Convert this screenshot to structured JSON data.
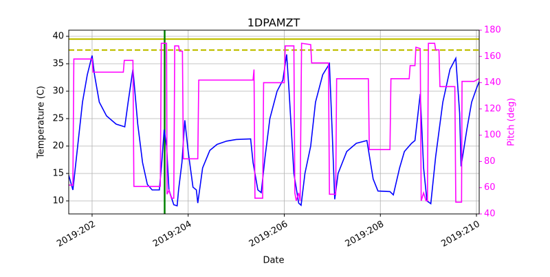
{
  "chart_data": {
    "type": "line",
    "title": "1DPAMZT",
    "xlabel": "Date",
    "ylabel": "Temperature (C)",
    "y2label": "Pitch (deg)",
    "y2color": "#ff00ff",
    "xlim": [
      201.514,
      210.057
    ],
    "xticks": [
      {
        "value": 202,
        "label": "2019:202"
      },
      {
        "value": 204,
        "label": "2019:204"
      },
      {
        "value": 206,
        "label": "2019:206"
      },
      {
        "value": 208,
        "label": "2019:208"
      },
      {
        "value": 210,
        "label": "2019:210"
      }
    ],
    "ylim": [
      7.625,
      41.125
    ],
    "yticks": [
      10,
      15,
      20,
      25,
      30,
      35,
      40
    ],
    "y2lim": [
      40,
      180
    ],
    "y2ticks": [
      40,
      60,
      80,
      100,
      120,
      140,
      160,
      180
    ],
    "grid": true,
    "hlines": [
      {
        "value": 39.5,
        "color": "#bfbf00",
        "style": "solid"
      },
      {
        "value": 37.5,
        "color": "#bfbf00",
        "style": "dashed"
      }
    ],
    "vlines": [
      {
        "value": 203.51,
        "color": "#008000"
      }
    ],
    "series": [
      {
        "color": "#0000ff",
        "axis": "y",
        "x": [
          201.51,
          201.6,
          201.7,
          201.8,
          201.9,
          202.0,
          202.05,
          202.15,
          202.3,
          202.5,
          202.68,
          202.75,
          202.85,
          202.95,
          203.05,
          203.15,
          203.25,
          203.4,
          203.45,
          203.5,
          203.55,
          203.6,
          203.7,
          203.77,
          203.8,
          203.87,
          203.93,
          204.0,
          204.1,
          204.17,
          204.2,
          204.3,
          204.45,
          204.6,
          204.8,
          205.0,
          205.3,
          205.35,
          205.45,
          205.52,
          205.6,
          205.7,
          205.85,
          205.97,
          206.05,
          206.1,
          206.2,
          206.3,
          206.35,
          206.43,
          206.55,
          206.65,
          206.8,
          206.94,
          207.0,
          207.05,
          207.12,
          207.3,
          207.5,
          207.72,
          207.85,
          207.95,
          208.2,
          208.27,
          208.4,
          208.5,
          208.65,
          208.72,
          208.83,
          208.9,
          208.97,
          209.05,
          209.15,
          209.3,
          209.45,
          209.57,
          209.65,
          209.68,
          209.8,
          209.9,
          210.0,
          210.06
        ],
        "values": [
          14.8,
          12.0,
          20,
          28,
          33,
          36.5,
          33,
          28,
          25.5,
          24,
          23.5,
          28,
          34,
          24,
          17,
          13,
          12,
          12,
          17,
          23,
          20,
          12,
          9.3,
          9.1,
          12,
          17,
          24.7,
          19,
          12.5,
          12,
          9.6,
          16,
          19.2,
          20.3,
          20.9,
          21.2,
          21.3,
          17,
          12,
          11.5,
          18,
          25,
          30,
          32,
          36.7,
          30,
          15,
          9.6,
          9.2,
          15,
          20,
          28,
          33,
          35,
          22,
          10.3,
          15,
          19,
          20.5,
          21,
          14,
          11.8,
          11.7,
          11.1,
          16,
          19,
          20.5,
          21,
          29.5,
          16,
          10,
          9.5,
          18,
          28,
          34,
          36,
          26,
          16.3,
          23,
          28,
          30.5,
          31.8
        ]
      },
      {
        "color": "#ff00ff",
        "axis": "y2",
        "x": [
          201.51,
          201.6,
          201.62,
          202.0,
          202.02,
          202.65,
          202.67,
          202.85,
          202.87,
          203.42,
          203.44,
          203.55,
          203.56,
          203.6,
          203.65,
          203.7,
          203.72,
          203.8,
          203.82,
          203.88,
          203.9,
          204.2,
          204.22,
          205.35,
          205.37,
          205.39,
          205.55,
          205.57,
          206.0,
          206.02,
          206.2,
          206.22,
          206.25,
          206.3,
          206.33,
          206.36,
          206.55,
          206.57,
          206.92,
          206.94,
          207.07,
          207.09,
          207.75,
          207.77,
          208.2,
          208.22,
          208.6,
          208.62,
          208.72,
          208.74,
          208.83,
          208.85,
          208.9,
          208.95,
          208.98,
          209.0,
          209.13,
          209.15,
          209.22,
          209.24,
          209.55,
          209.57,
          209.69,
          209.7,
          209.95,
          210.05
        ],
        "values": [
          62,
          62,
          158,
          158,
          148,
          148,
          157,
          157,
          61,
          61,
          170,
          170,
          55,
          58,
          52,
          52,
          168,
          168,
          164,
          164,
          82,
          82,
          142,
          142,
          150,
          52,
          52,
          140,
          140,
          168,
          168,
          56,
          50,
          56,
          50,
          170,
          169,
          155,
          155,
          55,
          55,
          143,
          143,
          89,
          89,
          143,
          143,
          153,
          153,
          167,
          166,
          50,
          56,
          50,
          50,
          170,
          170,
          165,
          165,
          137,
          137,
          49,
          49,
          141,
          141,
          143
        ]
      }
    ]
  }
}
